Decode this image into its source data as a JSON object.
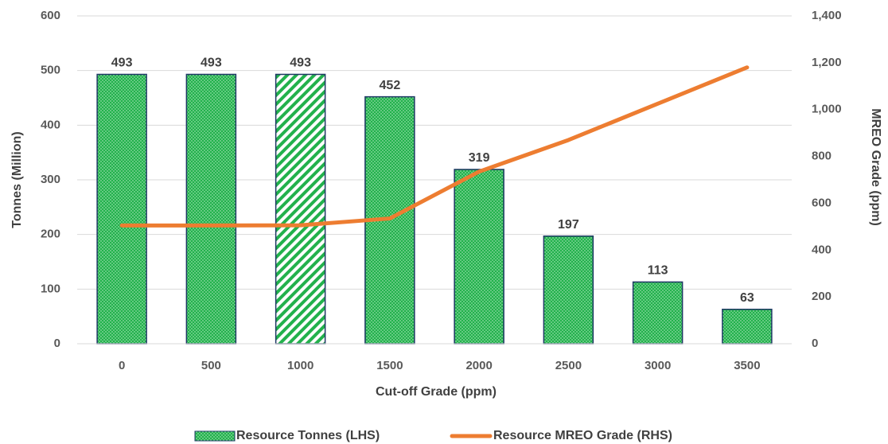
{
  "chart_data": {
    "type": "bar_line",
    "x_label": "Cut-off Grade (ppm)",
    "y_label": "Tonnes (Million)",
    "y2_label": "MREO Grade (ppm)",
    "categories": [
      "0",
      "500",
      "1000",
      "1500",
      "2000",
      "2500",
      "3000",
      "3500"
    ],
    "ylim": [
      0,
      600
    ],
    "yticks": [
      0,
      100,
      200,
      300,
      400,
      500,
      600
    ],
    "y2lim": [
      0,
      1400
    ],
    "y2ticks": [
      0,
      200,
      400,
      600,
      800,
      {
        "value": 1000,
        "label": "1,000"
      },
      {
        "value": 1200,
        "label": "1,200"
      },
      {
        "value": 1400,
        "label": "1,400"
      }
    ],
    "grid": true,
    "legend": "bottom",
    "series": [
      {
        "name": "Resource Tonnes (LHS)",
        "type": "bar",
        "color": "#22b14c",
        "edge_color": "#1f3864",
        "patterns": [
          "dots",
          "dots",
          "diagonal",
          "dots",
          "dots",
          "dots",
          "dots",
          "dots"
        ],
        "values": [
          493,
          493,
          493,
          452,
          319,
          197,
          113,
          63
        ]
      },
      {
        "name": "Resource MREO Grade (RHS)",
        "type": "line",
        "axis": "y2",
        "color": "#ed7d31",
        "values": [
          505,
          505,
          506,
          535,
          735,
          870,
          1025,
          1180
        ]
      }
    ]
  }
}
